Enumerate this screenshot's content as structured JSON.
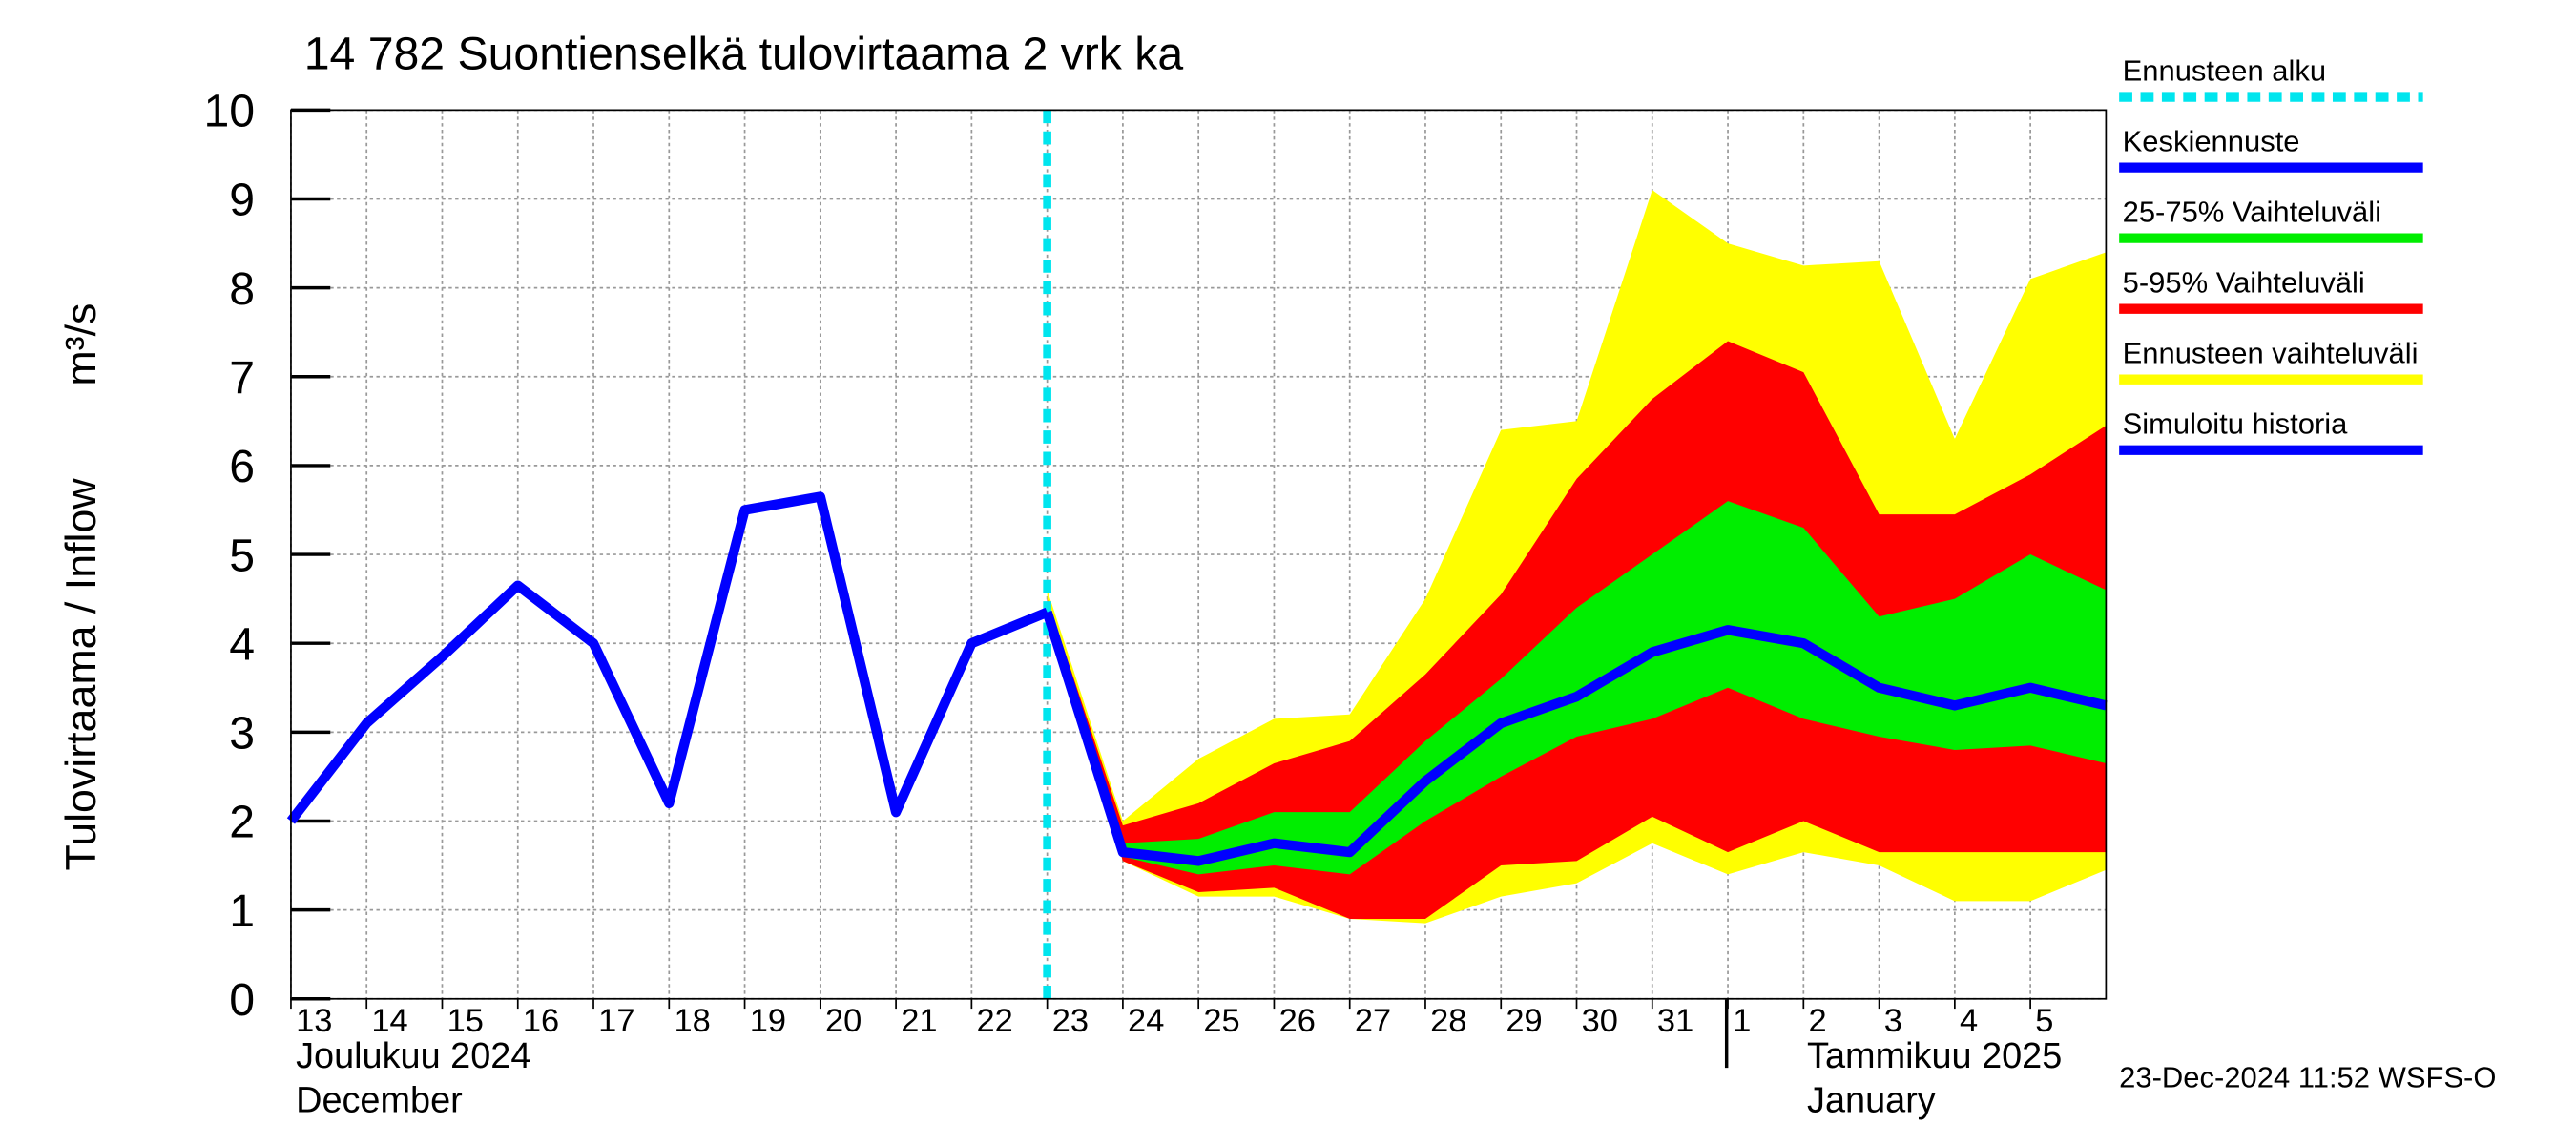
{
  "chart_data": {
    "type": "line",
    "title": "14 782 Suontienselkä tulovirtaama 2 vrk ka",
    "y_label": "Tulovirtaama / Inflow",
    "y_unit": "m³/s",
    "month_labels": [
      "Joulukuu  2024",
      "December",
      "Tammikuu  2025",
      "January"
    ],
    "timestamp": "23-Dec-2024 11:52 WSFS-O",
    "xlim": [
      "2024-12-13",
      "2025-01-06"
    ],
    "xticks": [
      {
        "value": "2024-12-13",
        "label": "13"
      },
      {
        "value": "2024-12-14",
        "label": "14"
      },
      {
        "value": "2024-12-15",
        "label": "15"
      },
      {
        "value": "2024-12-16",
        "label": "16"
      },
      {
        "value": "2024-12-17",
        "label": "17"
      },
      {
        "value": "2024-12-18",
        "label": "18"
      },
      {
        "value": "2024-12-19",
        "label": "19"
      },
      {
        "value": "2024-12-20",
        "label": "20"
      },
      {
        "value": "2024-12-21",
        "label": "21"
      },
      {
        "value": "2024-12-22",
        "label": "22"
      },
      {
        "value": "2024-12-23",
        "label": "23"
      },
      {
        "value": "2024-12-24",
        "label": "24"
      },
      {
        "value": "2024-12-25",
        "label": "25"
      },
      {
        "value": "2024-12-26",
        "label": "26"
      },
      {
        "value": "2024-12-27",
        "label": "27"
      },
      {
        "value": "2024-12-28",
        "label": "28"
      },
      {
        "value": "2024-12-29",
        "label": "29"
      },
      {
        "value": "2024-12-30",
        "label": "30"
      },
      {
        "value": "2024-12-31",
        "label": "31"
      },
      {
        "value": "2025-01-01",
        "label": "1"
      },
      {
        "value": "2025-01-02",
        "label": "2"
      },
      {
        "value": "2025-01-03",
        "label": "3"
      },
      {
        "value": "2025-01-04",
        "label": "4"
      },
      {
        "value": "2025-01-05",
        "label": "5"
      }
    ],
    "ylim": [
      0,
      10
    ],
    "yticks": [
      0,
      1,
      2,
      3,
      4,
      5,
      6,
      7,
      8,
      9,
      10
    ],
    "grid": true,
    "forecast_start": {
      "name": "Ennusteen alku",
      "color": "#00e5ee",
      "x": "2024-12-23"
    },
    "bands": [
      {
        "name": "Ennusteen vaihteluväli",
        "color": "#ffff00",
        "x": [
          "2024-12-23",
          "2024-12-24",
          "2024-12-25",
          "2024-12-26",
          "2024-12-27",
          "2024-12-28",
          "2024-12-29",
          "2024-12-30",
          "2024-12-31",
          "2025-01-01",
          "2025-01-02",
          "2025-01-03",
          "2025-01-04",
          "2025-01-05",
          "2025-01-06"
        ],
        "low": [
          4.3,
          1.55,
          1.15,
          1.15,
          0.9,
          0.85,
          1.15,
          1.3,
          1.75,
          1.4,
          1.65,
          1.5,
          1.1,
          1.1,
          1.45
        ],
        "high": [
          4.6,
          2.0,
          2.7,
          3.15,
          3.2,
          4.5,
          6.4,
          6.5,
          9.1,
          8.5,
          8.25,
          8.3,
          6.3,
          8.1,
          8.4
        ]
      },
      {
        "name": "5-95% Vaihteluväli",
        "color": "#ff0000",
        "x": [
          "2024-12-23",
          "2024-12-24",
          "2024-12-25",
          "2024-12-26",
          "2024-12-27",
          "2024-12-28",
          "2024-12-29",
          "2024-12-30",
          "2024-12-31",
          "2025-01-01",
          "2025-01-02",
          "2025-01-03",
          "2025-01-04",
          "2025-01-05",
          "2025-01-06"
        ],
        "low": [
          4.3,
          1.55,
          1.2,
          1.25,
          0.9,
          0.9,
          1.5,
          1.55,
          2.05,
          1.65,
          2.0,
          1.65,
          1.65,
          1.65,
          1.65
        ],
        "high": [
          4.5,
          1.95,
          2.2,
          2.65,
          2.9,
          3.65,
          4.55,
          5.85,
          6.75,
          7.4,
          7.05,
          5.45,
          5.45,
          5.9,
          6.45
        ]
      },
      {
        "name": "25-75% Vaihteluväli",
        "color": "#00ee00",
        "x": [
          "2024-12-23",
          "2024-12-24",
          "2024-12-25",
          "2024-12-26",
          "2024-12-27",
          "2024-12-28",
          "2024-12-29",
          "2024-12-30",
          "2024-12-31",
          "2025-01-01",
          "2025-01-02",
          "2025-01-03",
          "2025-01-04",
          "2025-01-05",
          "2025-01-06"
        ],
        "low": [
          4.35,
          1.6,
          1.4,
          1.5,
          1.4,
          2.0,
          2.5,
          2.95,
          3.15,
          3.5,
          3.15,
          2.95,
          2.8,
          2.85,
          2.65
        ],
        "high": [
          4.35,
          1.75,
          1.8,
          2.1,
          2.1,
          2.9,
          3.6,
          4.4,
          5.0,
          5.6,
          5.3,
          4.3,
          4.5,
          5.0,
          4.6
        ]
      }
    ],
    "series": [
      {
        "name": "Keskiennuste",
        "color": "#0000ff",
        "x": [
          "2024-12-23",
          "2024-12-24",
          "2024-12-25",
          "2024-12-26",
          "2024-12-27",
          "2024-12-28",
          "2024-12-29",
          "2024-12-30",
          "2024-12-31",
          "2025-01-01",
          "2025-01-02",
          "2025-01-03",
          "2025-01-04",
          "2025-01-05",
          "2025-01-06"
        ],
        "values": [
          4.35,
          1.65,
          1.55,
          1.75,
          1.65,
          2.45,
          3.1,
          3.4,
          3.9,
          4.15,
          4.0,
          3.5,
          3.3,
          3.5,
          3.3
        ]
      },
      {
        "name": "Simuloitu historia",
        "color": "#0000ff",
        "x": [
          "2024-12-13",
          "2024-12-14",
          "2024-12-15",
          "2024-12-16",
          "2024-12-17",
          "2024-12-18",
          "2024-12-19",
          "2024-12-20",
          "2024-12-21",
          "2024-12-22",
          "2024-12-23"
        ],
        "values": [
          2.0,
          3.1,
          3.85,
          4.65,
          4.0,
          2.2,
          5.5,
          5.65,
          2.1,
          4.0,
          4.35
        ]
      }
    ]
  }
}
